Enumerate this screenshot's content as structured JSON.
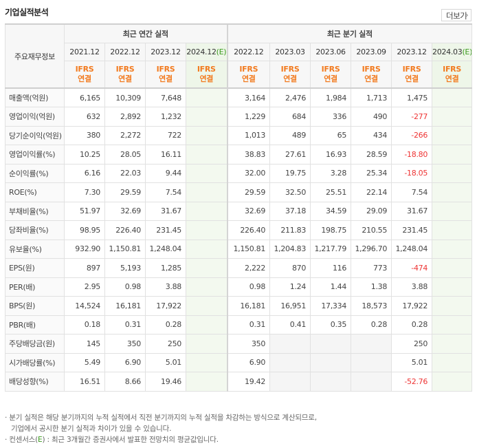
{
  "header": {
    "title": "기업실적분석",
    "more_label": "더보기",
    "more_arrow": "›"
  },
  "table": {
    "corner_label": "주요재무정보",
    "annual_label": "최근 연간 실적",
    "quarter_label": "최근 분기 실적",
    "annual_years": [
      "2021.12",
      "2022.12",
      "2023.12",
      "2024.12"
    ],
    "quarter_years": [
      "2022.12",
      "2023.03",
      "2023.06",
      "2023.09",
      "2023.12",
      "2024.03"
    ],
    "est_mark": "(E)",
    "ifrs_top": "IFRS",
    "ifrs_bottom": "연결",
    "rows": [
      {
        "label": "매출액(억원)",
        "annual": [
          "6,165",
          "10,309",
          "7,648",
          ""
        ],
        "quarter": [
          "3,164",
          "2,476",
          "1,984",
          "1,713",
          "1,475",
          ""
        ]
      },
      {
        "label": "영업이익(억원)",
        "annual": [
          "632",
          "2,892",
          "1,232",
          ""
        ],
        "quarter": [
          "1,229",
          "684",
          "336",
          "490",
          "-277",
          ""
        ]
      },
      {
        "label": "당기순이익(억원)",
        "annual": [
          "380",
          "2,272",
          "722",
          ""
        ],
        "quarter": [
          "1,013",
          "489",
          "65",
          "434",
          "-266",
          ""
        ]
      },
      {
        "label": "영업이익률(%)",
        "annual": [
          "10.25",
          "28.05",
          "16.11",
          ""
        ],
        "quarter": [
          "38.83",
          "27.61",
          "16.93",
          "28.59",
          "-18.80",
          ""
        ]
      },
      {
        "label": "순이익률(%)",
        "annual": [
          "6.16",
          "22.03",
          "9.44",
          ""
        ],
        "quarter": [
          "32.00",
          "19.75",
          "3.28",
          "25.34",
          "-18.05",
          ""
        ]
      },
      {
        "label": "ROE(%)",
        "annual": [
          "7.30",
          "29.59",
          "7.54",
          ""
        ],
        "quarter": [
          "29.59",
          "32.50",
          "25.51",
          "22.14",
          "7.54",
          ""
        ]
      },
      {
        "label": "부채비율(%)",
        "annual": [
          "51.97",
          "32.69",
          "31.67",
          ""
        ],
        "quarter": [
          "32.69",
          "37.18",
          "34.59",
          "29.09",
          "31.67",
          ""
        ]
      },
      {
        "label": "당좌비율(%)",
        "annual": [
          "98.95",
          "226.40",
          "231.45",
          ""
        ],
        "quarter": [
          "226.40",
          "211.83",
          "198.75",
          "210.55",
          "231.45",
          ""
        ]
      },
      {
        "label": "유보율(%)",
        "annual": [
          "932.90",
          "1,150.81",
          "1,248.04",
          ""
        ],
        "quarter": [
          "1,150.81",
          "1,204.83",
          "1,217.79",
          "1,296.70",
          "1,248.04",
          ""
        ]
      },
      {
        "label": "EPS(원)",
        "annual": [
          "897",
          "5,193",
          "1,285",
          ""
        ],
        "quarter": [
          "2,222",
          "870",
          "116",
          "773",
          "-474",
          ""
        ]
      },
      {
        "label": "PER(배)",
        "annual": [
          "2.95",
          "0.98",
          "3.88",
          ""
        ],
        "quarter": [
          "0.98",
          "1.24",
          "1.44",
          "1.38",
          "3.88",
          ""
        ]
      },
      {
        "label": "BPS(원)",
        "annual": [
          "14,524",
          "16,181",
          "17,922",
          ""
        ],
        "quarter": [
          "16,181",
          "16,951",
          "17,334",
          "18,573",
          "17,922",
          ""
        ]
      },
      {
        "label": "PBR(배)",
        "annual": [
          "0.18",
          "0.31",
          "0.28",
          ""
        ],
        "quarter": [
          "0.31",
          "0.41",
          "0.35",
          "0.28",
          "0.28",
          ""
        ]
      },
      {
        "label": "주당배당금(원)",
        "annual": [
          "145",
          "350",
          "250",
          ""
        ],
        "quarter": [
          "350",
          "",
          "",
          "",
          "250",
          ""
        ]
      },
      {
        "label": "시가배당률(%)",
        "annual": [
          "5.49",
          "6.90",
          "5.01",
          ""
        ],
        "quarter": [
          "6.90",
          "",
          "",
          "",
          "5.01",
          ""
        ]
      },
      {
        "label": "배당성향(%)",
        "annual": [
          "16.51",
          "8.66",
          "19.46",
          ""
        ],
        "quarter": [
          "19.42",
          "",
          "",
          "",
          "-52.76",
          ""
        ]
      }
    ]
  },
  "notes": {
    "line1": "· 분기 실적은 해당 분기까지의 누적 실적에서 직전 분기까지의 누적 실적을 차감하는 방식으로 계산되므로,",
    "line2": "기업에서 공시한 분기 실적과 차이가 있을 수 있습니다.",
    "line3_pre": "· 컨센서스(",
    "line3_e": "E",
    "line3_post": ") : 최근 3개월간 증권사에서 발표한 전망치의 평균값입니다."
  }
}
